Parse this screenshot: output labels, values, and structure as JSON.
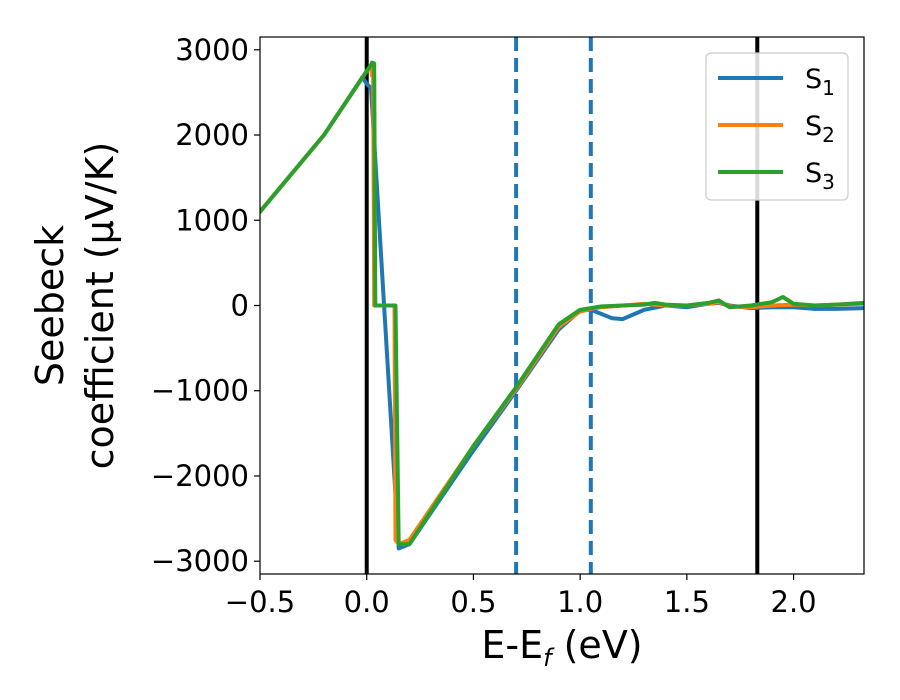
{
  "chart_data": {
    "type": "line",
    "xlabel": "E-E",
    "xlabel_sub": "f",
    "xlabel_unit": " (eV)",
    "ylabel_line1": "Seebeck",
    "ylabel_line2": "coefficient  (μV/K)",
    "xlim": [
      -0.5,
      2.33
    ],
    "ylim": [
      -3150,
      3150
    ],
    "xticks": [
      -0.5,
      0.0,
      0.5,
      1.0,
      1.5,
      2.0
    ],
    "xtick_labels": [
      "−0.5",
      "0.0",
      "0.5",
      "1.0",
      "1.5",
      "2.0"
    ],
    "yticks": [
      -3000,
      -2000,
      -1000,
      0,
      1000,
      2000,
      3000
    ],
    "ytick_labels": [
      "−3000",
      "−2000",
      "−1000",
      "0",
      "1000",
      "2000",
      "3000"
    ],
    "grid": false,
    "legend_position": "top-right",
    "vlines": [
      {
        "x": 0.0,
        "color": "#000000",
        "style": "solid"
      },
      {
        "x": 1.83,
        "color": "#000000",
        "style": "solid"
      },
      {
        "x": 0.7,
        "color": "#1f77b4",
        "style": "dashed"
      },
      {
        "x": 1.05,
        "color": "#1f77b4",
        "style": "dashed"
      }
    ],
    "series": [
      {
        "name": "S",
        "sub": "1",
        "color": "#1f77b4",
        "x": [
          -0.5,
          -0.2,
          -0.02,
          0.0,
          0.02,
          0.15,
          0.2,
          0.5,
          0.7,
          0.9,
          1.0,
          1.05,
          1.1,
          1.15,
          1.2,
          1.3,
          1.4,
          1.5,
          1.6,
          1.65,
          1.7,
          1.8,
          1.9,
          2.0,
          2.1,
          2.2,
          2.33
        ],
        "y": [
          1100,
          2000,
          2680,
          2600,
          2550,
          -2850,
          -2800,
          -1700,
          -1000,
          -280,
          -60,
          -50,
          -100,
          -150,
          -160,
          -50,
          0,
          -20,
          20,
          30,
          0,
          -30,
          -20,
          -20,
          -40,
          -40,
          -30
        ]
      },
      {
        "name": "S",
        "sub": "2",
        "color": "#ff7f0e",
        "x": [
          -0.5,
          -0.2,
          0.0,
          0.02,
          0.025,
          0.03,
          0.035,
          0.04,
          0.13,
          0.135,
          0.15,
          0.2,
          0.5,
          0.7,
          0.9,
          1.0,
          1.05,
          1.1,
          1.2,
          1.3,
          1.4,
          1.5,
          1.6,
          1.65,
          1.7,
          1.8,
          1.9,
          2.0,
          2.1,
          2.2,
          2.33
        ],
        "y": [
          1100,
          2000,
          2750,
          2800,
          2700,
          2820,
          0,
          0,
          0,
          -2750,
          -2800,
          -2750,
          -1650,
          -980,
          -250,
          -70,
          -40,
          -20,
          0,
          20,
          0,
          0,
          20,
          40,
          -10,
          -20,
          0,
          10,
          0,
          10,
          20
        ]
      },
      {
        "name": "S",
        "sub": "3",
        "color": "#2ca02c",
        "x": [
          -0.5,
          -0.2,
          0.0,
          0.02,
          0.025,
          0.035,
          0.04,
          0.13,
          0.135,
          0.15,
          0.2,
          0.5,
          0.7,
          0.9,
          1.0,
          1.05,
          1.1,
          1.2,
          1.3,
          1.35,
          1.4,
          1.5,
          1.6,
          1.65,
          1.7,
          1.8,
          1.9,
          1.95,
          2.0,
          2.1,
          2.2,
          2.33
        ],
        "y": [
          1100,
          2000,
          2750,
          2820,
          2850,
          2840,
          0,
          0,
          0,
          -2800,
          -2800,
          -1650,
          -960,
          -220,
          -50,
          -30,
          -10,
          0,
          10,
          30,
          10,
          0,
          30,
          60,
          -20,
          0,
          40,
          100,
          20,
          0,
          10,
          30
        ]
      }
    ]
  }
}
